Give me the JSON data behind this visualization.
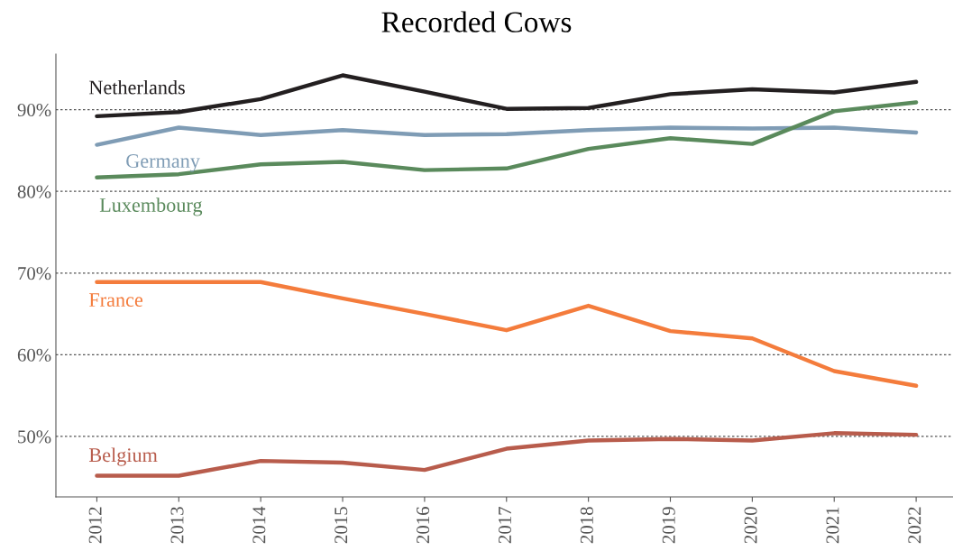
{
  "chart_data": {
    "type": "line",
    "title": "Recorded Cows",
    "categories": [
      "2012",
      "2013",
      "2014",
      "2015",
      "2016",
      "2017",
      "2018",
      "2019",
      "2020",
      "2021",
      "2022"
    ],
    "series": [
      {
        "name": "Netherlands",
        "color": "#231f20",
        "values": [
          89.2,
          89.7,
          91.3,
          94.2,
          92.2,
          90.1,
          90.2,
          91.9,
          92.5,
          92.1,
          93.4
        ]
      },
      {
        "name": "Germany",
        "color": "#7f9cb5",
        "values": [
          85.7,
          87.8,
          86.9,
          87.5,
          86.9,
          87.0,
          87.5,
          87.8,
          87.7,
          87.8,
          87.2
        ]
      },
      {
        "name": "Luxembourg",
        "color": "#5a8a5c",
        "values": [
          81.7,
          82.1,
          83.3,
          83.6,
          82.6,
          82.8,
          85.2,
          86.5,
          85.8,
          89.8,
          90.9
        ]
      },
      {
        "name": "France",
        "color": "#f47c3c",
        "values": [
          68.9,
          68.9,
          68.9,
          66.9,
          65.0,
          63.0,
          66.0,
          62.9,
          62.0,
          58.0,
          56.2
        ]
      },
      {
        "name": "Belgium",
        "color": "#b85c4c",
        "values": [
          45.2,
          45.2,
          47.0,
          46.8,
          45.9,
          48.5,
          49.5,
          49.7,
          49.5,
          50.4,
          50.2
        ]
      }
    ],
    "ylim": [
      42.6,
      96.8
    ],
    "yticks": [
      {
        "value": 50,
        "label": "50%"
      },
      {
        "value": 60,
        "label": "60%"
      },
      {
        "value": 70,
        "label": "70%"
      },
      {
        "value": 80,
        "label": "80%"
      },
      {
        "value": 90,
        "label": "90%"
      }
    ],
    "grid": "y",
    "line_style": "solid",
    "legend": false
  }
}
